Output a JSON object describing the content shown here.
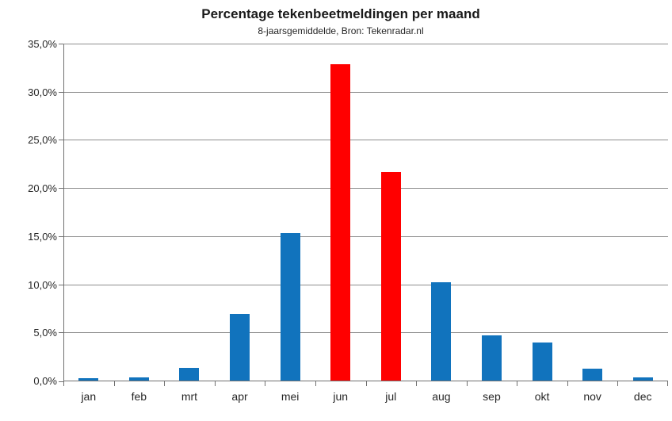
{
  "chart_data": {
    "type": "bar",
    "title": "Percentage tekenbeetmeldingen per maand",
    "subtitle": "8-jaarsgemiddelde, Bron: Tekenradar.nl",
    "categories": [
      "jan",
      "feb",
      "mrt",
      "apr",
      "mei",
      "jun",
      "jul",
      "aug",
      "sep",
      "okt",
      "nov",
      "dec"
    ],
    "values": [
      0.3,
      0.4,
      1.4,
      7.0,
      15.4,
      32.9,
      21.7,
      10.3,
      4.8,
      4.0,
      1.3,
      0.4
    ],
    "highlight_indices": [
      5,
      6
    ],
    "colors": {
      "bar_default": "#1173BD",
      "bar_highlight": "#FF0000",
      "gridline": "#8E8E8E",
      "axis": "#707070",
      "text": "#262626"
    },
    "xlabel": "",
    "ylabel": "",
    "ylim": [
      0,
      35
    ],
    "ytick_step": 5,
    "ytick_labels": [
      "0,0%",
      "5,0%",
      "10,0%",
      "15,0%",
      "20,0%",
      "25,0%",
      "30,0%",
      "35,0%"
    ],
    "grid": true,
    "legend": "none"
  }
}
